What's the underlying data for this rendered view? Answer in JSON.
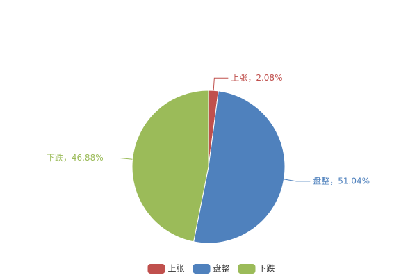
{
  "chart_data": {
    "type": "pie",
    "categories": [
      "上张",
      "盘整",
      "下跌"
    ],
    "values": [
      2.08,
      51.04,
      46.88
    ],
    "value_labels": [
      "上张，2.08%",
      "盘整，51.04%",
      "下跌，46.88%"
    ],
    "colors": [
      "#c0504d",
      "#4f81bd",
      "#9bbb59"
    ],
    "legend": "bottom"
  }
}
